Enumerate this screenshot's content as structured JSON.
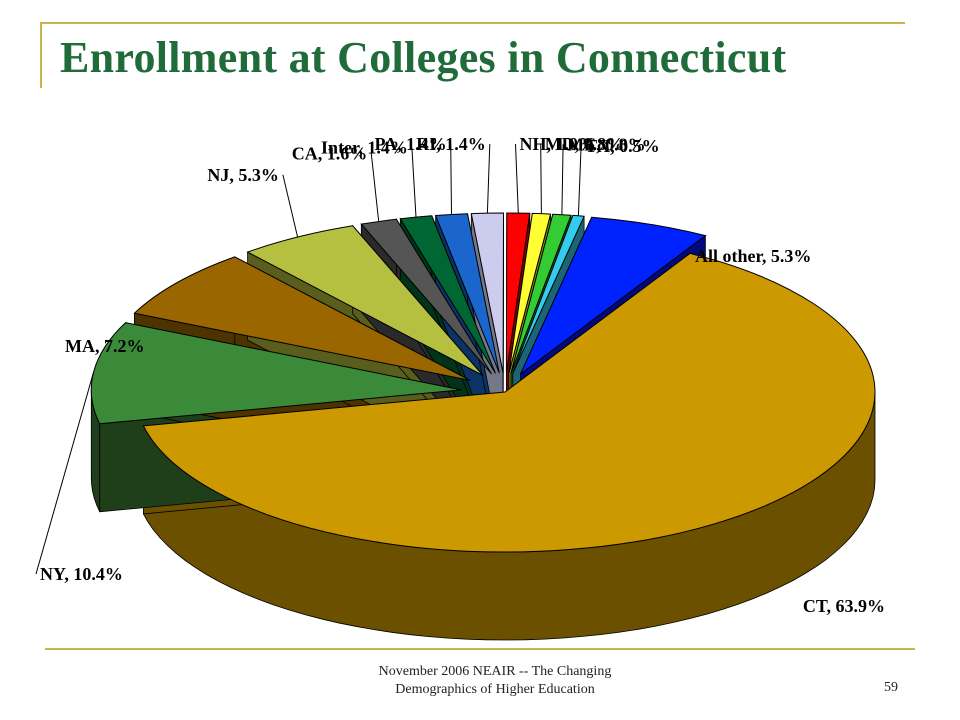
{
  "slide": {
    "title": "Enrollment at Colleges in Connecticut",
    "footer_line1": "November 2006 NEAIR -- The Changing",
    "footer_line2": "Demographics of Higher Education",
    "slide_number": "59"
  },
  "chart_data": {
    "type": "pie",
    "title": "",
    "unit": "%",
    "slices": [
      {
        "label": "CT",
        "value": 63.9,
        "color": "#cc9900",
        "side_color": "#6b5000"
      },
      {
        "label": "NY",
        "value": 10.4,
        "color": "#3a8a3a",
        "side_color": "#1f3f1a"
      },
      {
        "label": "MA",
        "value": 7.2,
        "color": "#996600",
        "side_color": "#4d3300"
      },
      {
        "label": "NJ",
        "value": 5.3,
        "color": "#b5c040",
        "side_color": "#5a5e1c"
      },
      {
        "label": "CA",
        "value": 1.6,
        "color": "#555555",
        "side_color": "#2a2a2a"
      },
      {
        "label": "Inter",
        "value": 1.4,
        "color": "#006633",
        "side_color": "#003318"
      },
      {
        "label": "PA",
        "value": 1.4,
        "color": "#1a66cc",
        "side_color": "#0d3366"
      },
      {
        "label": "RI",
        "value": 1.4,
        "color": "#ccccee",
        "side_color": "#77778a"
      },
      {
        "label": "NH",
        "value": 1.0,
        "color": "#ff0000",
        "side_color": "#800000"
      },
      {
        "label": "MD",
        "value": 0.8,
        "color": "#ffff33",
        "side_color": "#88881a"
      },
      {
        "label": "ME",
        "value": 0.8,
        "color": "#33cc33",
        "side_color": "#1a661a"
      },
      {
        "label": "TX",
        "value": 0.5,
        "color": "#33ccee",
        "side_color": "#1a6677"
      },
      {
        "label": "All other",
        "value": 5.3,
        "color": "#0022ff",
        "side_color": "#000a80"
      }
    ],
    "labels": [
      {
        "text": "CT, 63.9%"
      },
      {
        "text": "NY, 10.4%"
      },
      {
        "text": "MA, 7.2%"
      },
      {
        "text": "NJ, 5.3%"
      },
      {
        "text": "CA, 1.6%"
      },
      {
        "text": "Inter, 1.4%"
      },
      {
        "text": "PA, 1.4%"
      },
      {
        "text": "RI, 1.4%"
      },
      {
        "text": "NH, 1.0%"
      },
      {
        "text": "MD, 0.8%"
      },
      {
        "text": "ME, 0.8%"
      },
      {
        "text": "TX, 0.5%"
      },
      {
        "text": "All other, 5.3%"
      }
    ],
    "legend": "none",
    "style": "3d-exploded"
  }
}
